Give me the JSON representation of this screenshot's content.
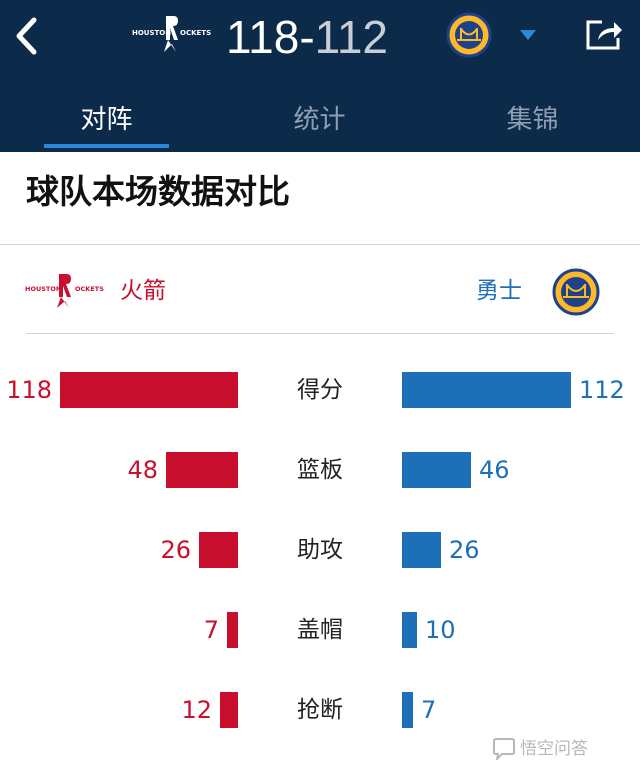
{
  "header": {
    "home_score": "118",
    "separator": "-",
    "away_score": "112",
    "home_logo_text": "HOUSTON ROCKETS",
    "away_logo_text": "GOLDEN STATE WARRIORS"
  },
  "tabs": [
    {
      "label": "对阵",
      "active": true
    },
    {
      "label": "统计",
      "active": false
    },
    {
      "label": "集锦",
      "active": false
    }
  ],
  "section_title": "球队本场数据对比",
  "teams": {
    "home": {
      "name": "火箭",
      "color": "#c8102e"
    },
    "away": {
      "name": "勇士",
      "color": "#1d6fb8"
    }
  },
  "stats": [
    {
      "label": "得分",
      "home": 118,
      "away": 112
    },
    {
      "label": "篮板",
      "home": 48,
      "away": 46
    },
    {
      "label": "助攻",
      "home": 26,
      "away": 26
    },
    {
      "label": "盖帽",
      "home": 7,
      "away": 10
    },
    {
      "label": "抢断",
      "home": 12,
      "away": 7
    }
  ],
  "watermark": "悟空问答",
  "icons": {
    "back": "chevron-left-icon",
    "dropdown": "triangle-down-icon",
    "share": "share-icon"
  },
  "colors": {
    "header_bg": "#0c2a4a",
    "tab_active": "#ffffff",
    "tab_inactive": "#8f9fb3",
    "underline": "#2a8ad8"
  }
}
